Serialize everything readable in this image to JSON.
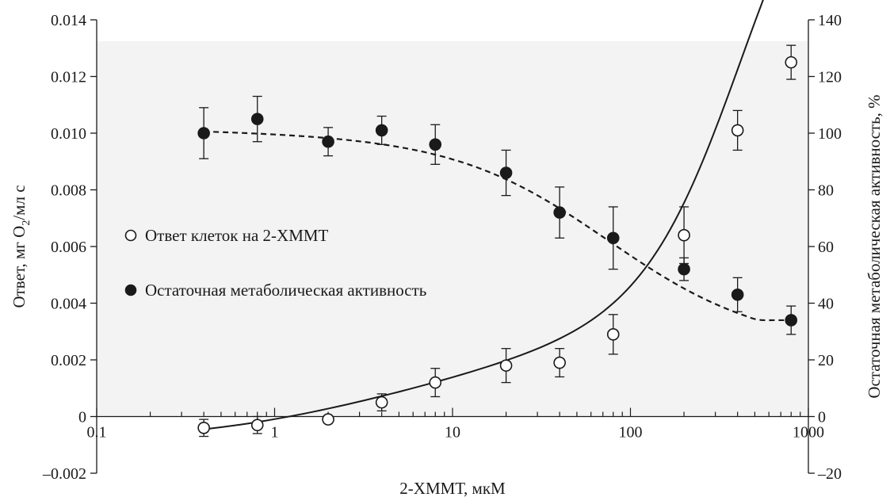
{
  "chart_data": {
    "type": "scatter",
    "x_scale": "log",
    "xlim": [
      0.1,
      1000
    ],
    "ylim_left": [
      -0.002,
      0.014
    ],
    "ylim_right": [
      -20,
      140
    ],
    "xlabel": "2-ХММТ, мкМ",
    "ylabel_left_parts": [
      "Ответ, мг O",
      "2",
      "/мл с"
    ],
    "ylabel_right": "Остаточная метаболическая активность, %",
    "x_ticks": [
      0.1,
      1,
      10,
      100,
      1000
    ],
    "x_tick_labels": [
      "0.1",
      "1",
      "10",
      "100",
      "1000"
    ],
    "y_left_ticks": [
      -0.002,
      0,
      0.002,
      0.004,
      0.006,
      0.008,
      0.01,
      0.012,
      0.014
    ],
    "y_left_tick_labels": [
      "–0.002",
      "0",
      "0.002",
      "0.004",
      "0.006",
      "0.008",
      "0.010",
      "0.012",
      "0.014"
    ],
    "y_right_ticks": [
      -20,
      0,
      20,
      40,
      60,
      80,
      100,
      120,
      140
    ],
    "y_right_tick_labels": [
      "–20",
      "0",
      "20",
      "40",
      "60",
      "80",
      "100",
      "120",
      "140"
    ],
    "legend_position": "left-middle",
    "series": [
      {
        "name": "Ответ клеток на 2-ХММТ",
        "axis": "left",
        "marker": "open-circle",
        "fit_line": "solid",
        "x": [
          0.4,
          0.8,
          2,
          4,
          8,
          20,
          40,
          80,
          200,
          400,
          800
        ],
        "y": [
          -0.0004,
          -0.0003,
          -0.0001,
          0.0005,
          0.0012,
          0.0018,
          0.0019,
          0.0029,
          0.0064,
          0.0101,
          0.0125
        ],
        "err": [
          0.0003,
          0.0003,
          0.0001,
          0.0003,
          0.0005,
          0.0006,
          0.0005,
          0.0007,
          0.001,
          0.0007,
          0.0006
        ]
      },
      {
        "name": "Остаточная метаболическая активность",
        "axis": "right",
        "marker": "filled-circle",
        "fit_line": "dashed",
        "x": [
          0.4,
          0.8,
          2,
          4,
          8,
          20,
          40,
          80,
          200,
          400,
          800
        ],
        "y": [
          100,
          105,
          97,
          101,
          96,
          86,
          72,
          63,
          52,
          43,
          34
        ],
        "err": [
          9,
          8,
          5,
          5,
          7,
          8,
          9,
          11,
          4,
          6,
          5
        ]
      }
    ]
  }
}
